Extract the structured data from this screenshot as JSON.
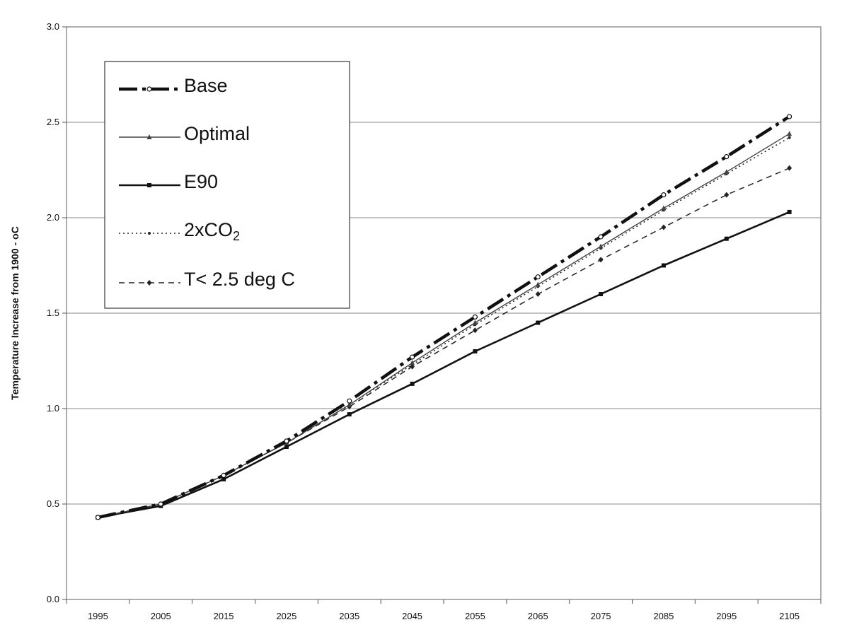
{
  "chart_data": {
    "type": "line",
    "title": "",
    "xlabel": "",
    "ylabel": "Temperature Increase from 1900 - oC",
    "x": [
      1995,
      2005,
      2015,
      2025,
      2035,
      2045,
      2055,
      2065,
      2075,
      2085,
      2095,
      2105
    ],
    "x_tick_labels": [
      "1995",
      "2005",
      "2015",
      "2025",
      "2035",
      "2045",
      "2055",
      "2065",
      "2075",
      "2085",
      "2095",
      "2105"
    ],
    "y_tick_labels": [
      "0.0",
      "0.5",
      "1.0",
      "1.5",
      "2.0",
      "2.5",
      "3.0"
    ],
    "ylim": [
      0,
      3.0
    ],
    "grid": true,
    "legend_position": "top-left",
    "series": [
      {
        "name": "Base",
        "style": "dash-dot",
        "color": "#111111",
        "values": [
          0.43,
          0.5,
          0.65,
          0.83,
          1.04,
          1.27,
          1.48,
          1.69,
          1.9,
          2.12,
          2.32,
          2.53
        ]
      },
      {
        "name": "Optimal",
        "style": "thin-solid",
        "color": "#444444",
        "values": [
          0.43,
          0.5,
          0.65,
          0.82,
          1.02,
          1.24,
          1.45,
          1.65,
          1.85,
          2.05,
          2.24,
          2.44
        ]
      },
      {
        "name": "E90",
        "style": "thick-solid",
        "color": "#111111",
        "values": [
          0.43,
          0.49,
          0.63,
          0.8,
          0.97,
          1.13,
          1.3,
          1.45,
          1.6,
          1.75,
          1.89,
          2.03
        ]
      },
      {
        "name": "2xCO",
        "name_subscript": "2",
        "style": "dotted",
        "color": "#222222",
        "values": [
          0.43,
          0.5,
          0.65,
          0.82,
          1.02,
          1.23,
          1.44,
          1.64,
          1.84,
          2.04,
          2.23,
          2.42
        ]
      },
      {
        "name": "T< 2.5 deg C",
        "style": "dashed",
        "color": "#222222",
        "values": [
          0.43,
          0.5,
          0.65,
          0.82,
          1.01,
          1.22,
          1.41,
          1.6,
          1.78,
          1.95,
          2.12,
          2.26
        ]
      }
    ]
  }
}
